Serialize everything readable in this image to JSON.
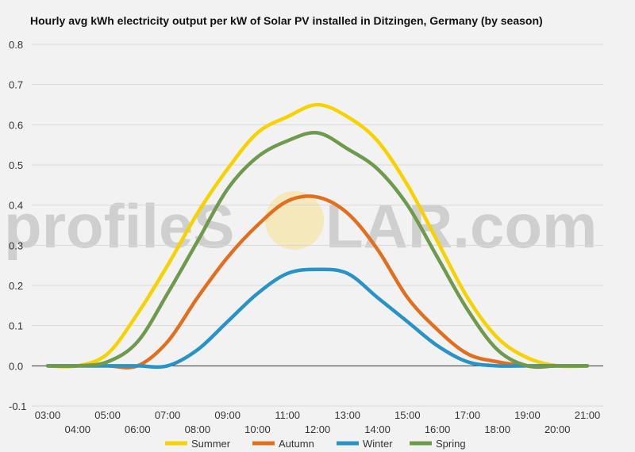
{
  "watermark": {
    "left": "profileS",
    "right": "LAR.com"
  },
  "chart_data": {
    "type": "line",
    "title": "Hourly avg kWh electricity output per kW of Solar PV installed in Ditzingen, Germany (by season)",
    "xlabel": "",
    "ylabel": "",
    "ylim": [
      -0.1,
      0.8
    ],
    "y_ticks": [
      "0.8",
      "0.7",
      "0.6",
      "0.5",
      "0.4",
      "0.3",
      "0.2",
      "0.1",
      "0.0",
      "-0.1"
    ],
    "x_ticks_top": [
      "03:00",
      "05:00",
      "07:00",
      "09:00",
      "11:00",
      "13:00",
      "15:00",
      "17:00",
      "19:00",
      "21:00"
    ],
    "x_ticks_bottom": [
      "04:00",
      "06:00",
      "08:00",
      "10:00",
      "12:00",
      "14:00",
      "16:00",
      "18:00",
      "20:00"
    ],
    "grid": true,
    "legend_position": "bottom",
    "x": [
      "03:00",
      "04:00",
      "05:00",
      "06:00",
      "07:00",
      "08:00",
      "09:00",
      "10:00",
      "11:00",
      "12:00",
      "13:00",
      "14:00",
      "15:00",
      "16:00",
      "17:00",
      "18:00",
      "19:00",
      "20:00",
      "21:00"
    ],
    "series": [
      {
        "name": "Summer",
        "color": "#f5d200",
        "values": [
          0.0,
          0.0,
          0.03,
          0.13,
          0.25,
          0.38,
          0.49,
          0.58,
          0.62,
          0.65,
          0.62,
          0.56,
          0.45,
          0.31,
          0.17,
          0.07,
          0.02,
          0.0,
          0.0
        ]
      },
      {
        "name": "Autumn",
        "color": "#e07020",
        "values": [
          0.0,
          0.0,
          0.0,
          0.0,
          0.06,
          0.17,
          0.27,
          0.35,
          0.41,
          0.42,
          0.38,
          0.29,
          0.17,
          0.09,
          0.03,
          0.01,
          0.0,
          0.0,
          0.0
        ]
      },
      {
        "name": "Winter",
        "color": "#2a93c6",
        "values": [
          0.0,
          0.0,
          0.0,
          0.0,
          0.0,
          0.04,
          0.11,
          0.18,
          0.23,
          0.24,
          0.23,
          0.17,
          0.11,
          0.05,
          0.01,
          0.0,
          0.0,
          0.0,
          0.0
        ]
      },
      {
        "name": "Spring",
        "color": "#6f9a4e",
        "values": [
          0.0,
          0.0,
          0.01,
          0.06,
          0.18,
          0.31,
          0.44,
          0.52,
          0.56,
          0.58,
          0.54,
          0.49,
          0.4,
          0.27,
          0.14,
          0.04,
          0.0,
          0.0,
          0.0
        ]
      }
    ]
  }
}
